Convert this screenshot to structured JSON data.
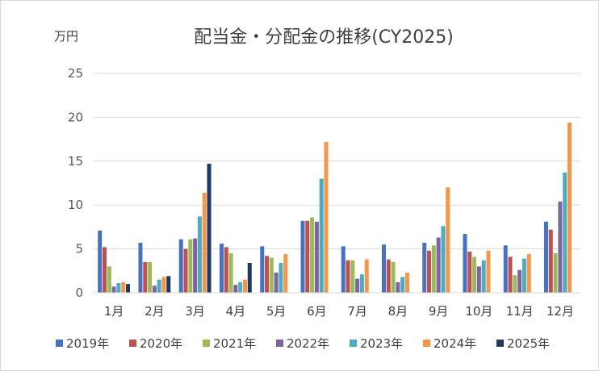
{
  "chart_data": {
    "type": "bar",
    "title": "配当金・分配金の推移(CY2025)",
    "unit_label": "万円",
    "ylim": [
      0,
      25
    ],
    "yticks": [
      "0",
      "5",
      "10",
      "15",
      "20",
      "25"
    ],
    "grid": true,
    "legend_position": "bottom",
    "categories": [
      "1月",
      "2月",
      "3月",
      "4月",
      "5月",
      "6月",
      "7月",
      "8月",
      "9月",
      "10月",
      "11月",
      "12月"
    ],
    "series": [
      {
        "name": "2019年",
        "color": "#4472C4",
        "values": [
          7.1,
          5.7,
          6.1,
          5.6,
          5.3,
          8.2,
          5.3,
          5.5,
          5.7,
          6.7,
          5.4,
          8.1
        ]
      },
      {
        "name": "2020年",
        "color": "#C0504D",
        "values": [
          5.2,
          3.5,
          5.0,
          5.2,
          4.2,
          8.2,
          3.7,
          3.8,
          4.8,
          4.7,
          4.1,
          7.2
        ]
      },
      {
        "name": "2021年",
        "color": "#9BBB59",
        "values": [
          3.0,
          3.5,
          6.1,
          4.5,
          4.0,
          8.6,
          3.7,
          3.5,
          5.4,
          4.1,
          2.0,
          4.5
        ]
      },
      {
        "name": "2022年",
        "color": "#8064A2",
        "values": [
          0.7,
          0.8,
          6.2,
          0.9,
          2.3,
          8.1,
          1.6,
          1.2,
          6.3,
          3.0,
          2.6,
          10.4
        ]
      },
      {
        "name": "2023年",
        "color": "#4BACC6",
        "values": [
          1.1,
          1.5,
          8.7,
          1.2,
          3.4,
          13.0,
          2.1,
          1.8,
          7.6,
          3.7,
          3.9,
          13.7
        ]
      },
      {
        "name": "2024年",
        "color": "#F79646",
        "values": [
          1.2,
          1.8,
          11.4,
          1.5,
          4.4,
          17.2,
          3.8,
          2.3,
          12.0,
          4.8,
          4.4,
          19.4
        ]
      },
      {
        "name": "2025年",
        "color": "#1F3864",
        "values": [
          1.0,
          1.9,
          14.7,
          3.4,
          null,
          null,
          null,
          null,
          null,
          null,
          null,
          null
        ]
      }
    ]
  }
}
